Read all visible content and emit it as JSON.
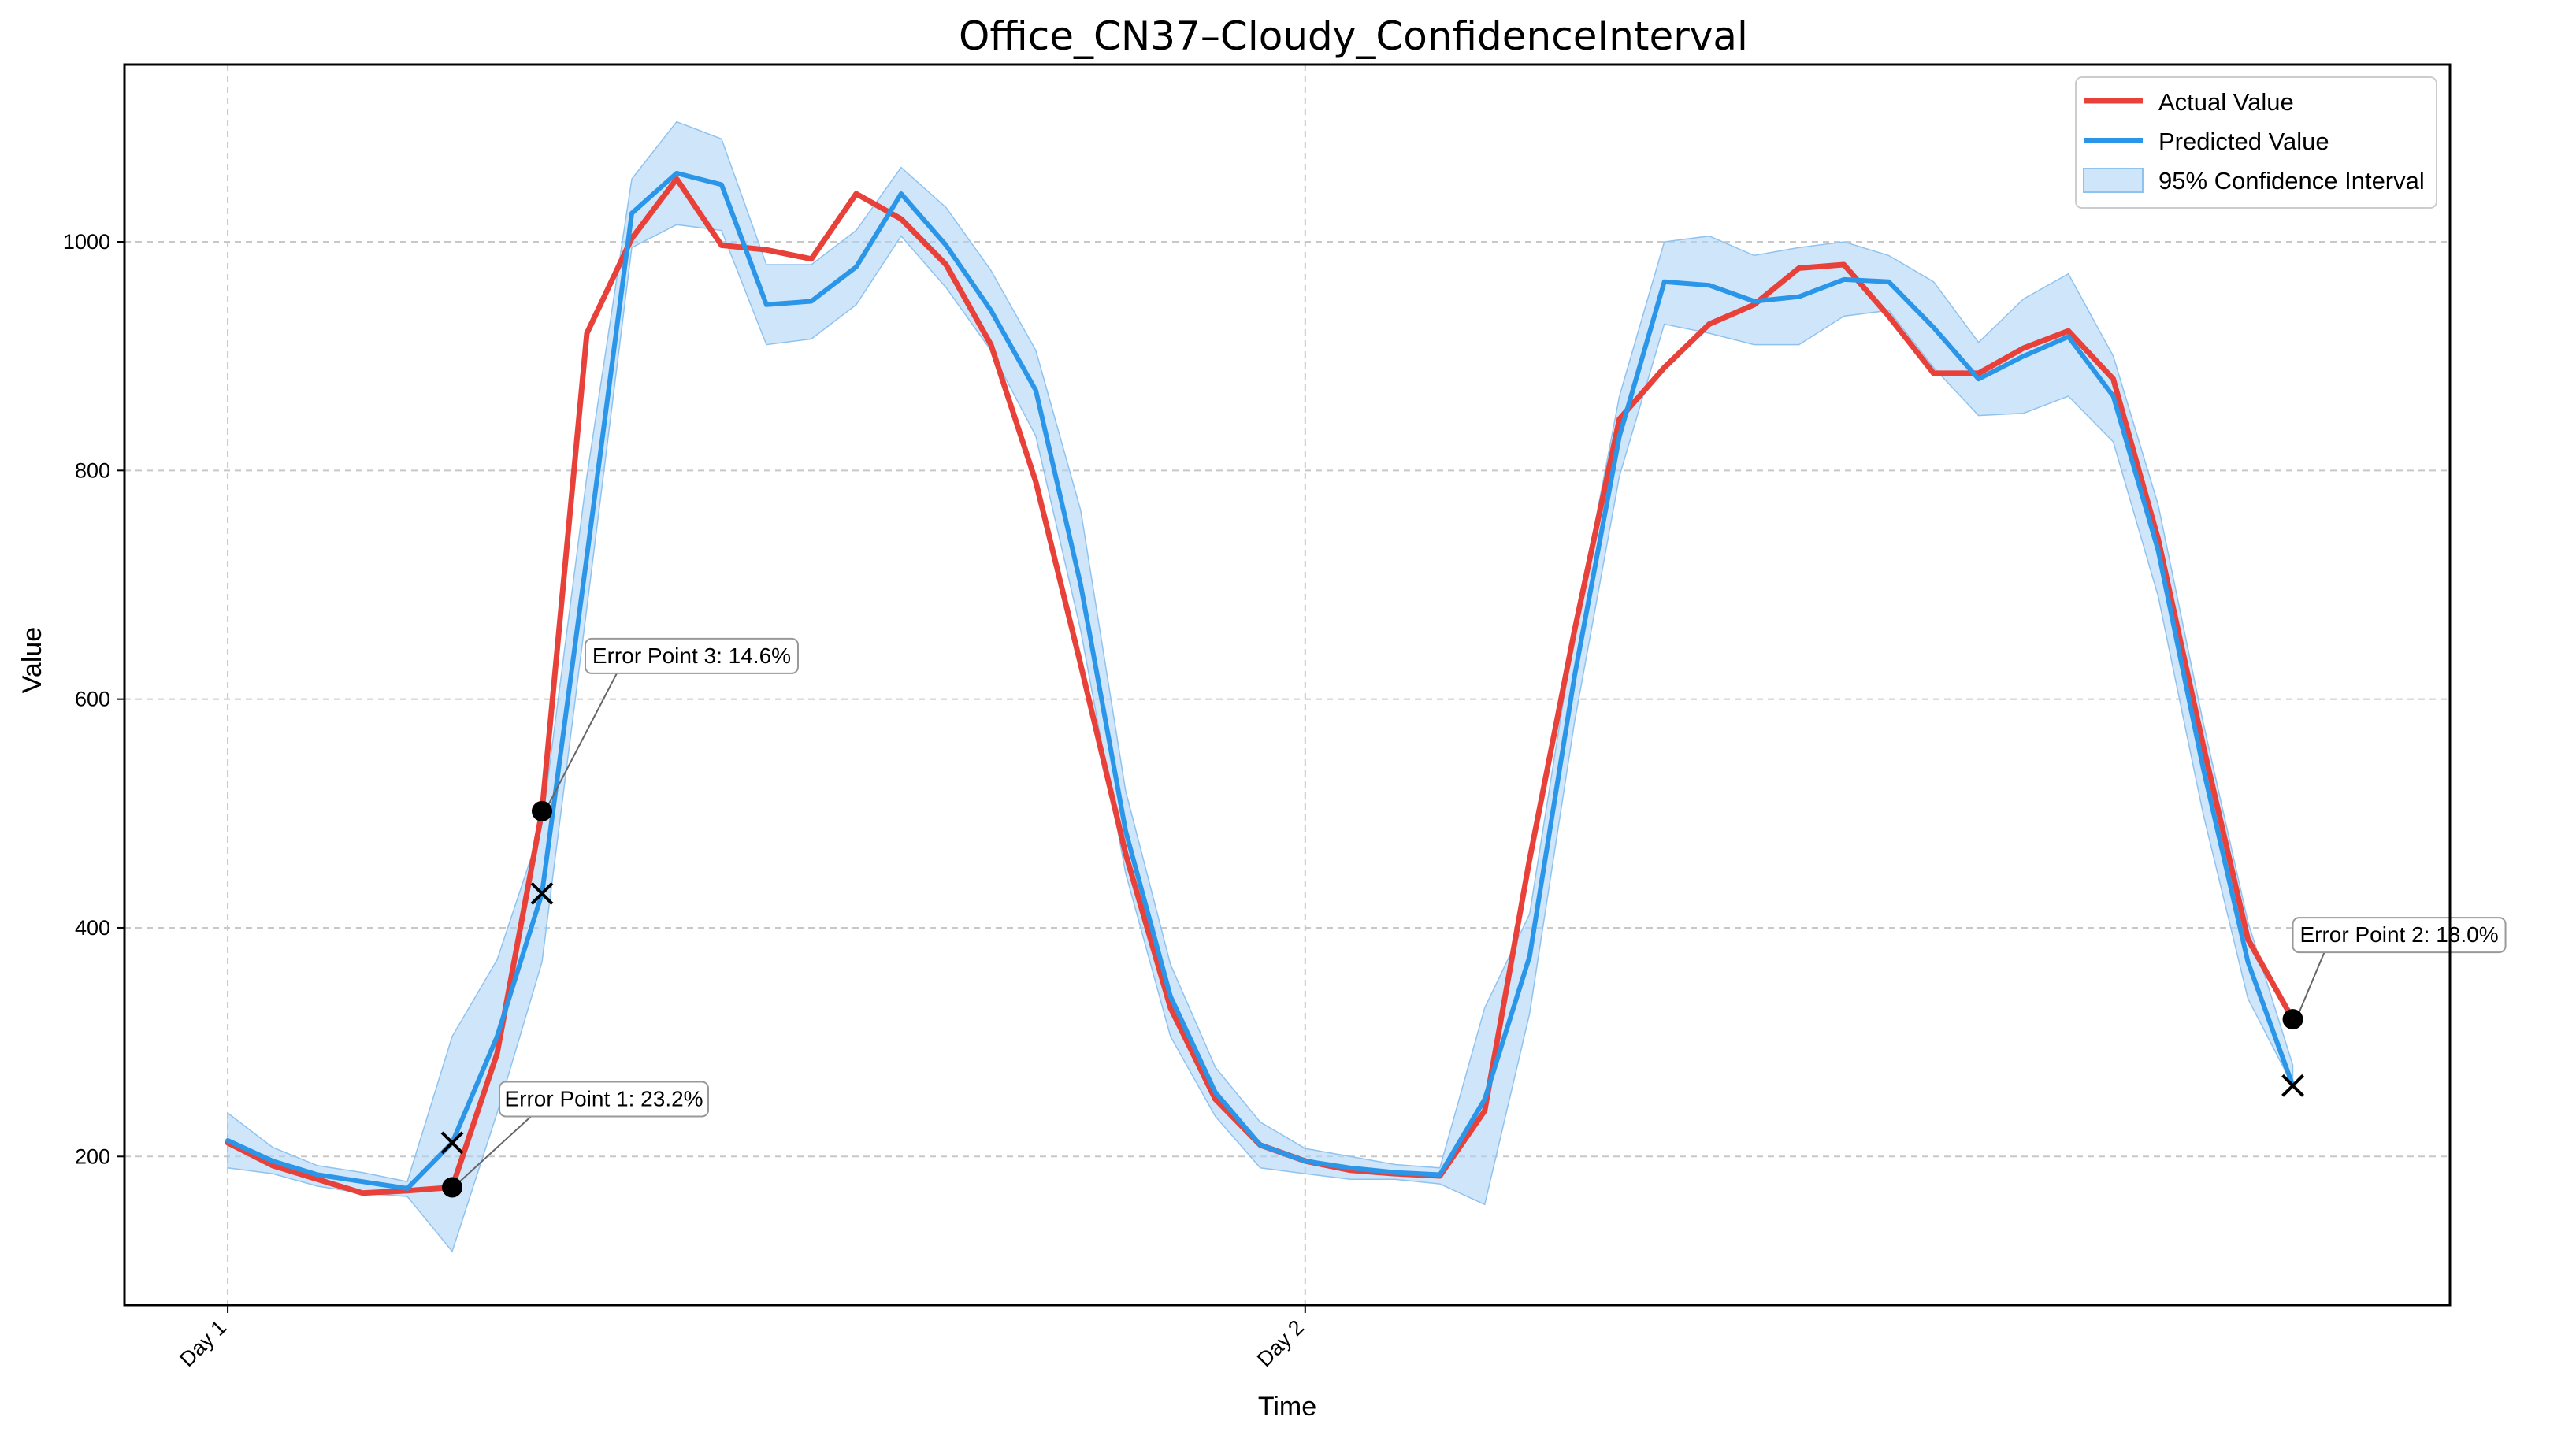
{
  "chart_data": {
    "type": "line",
    "title": "Office_CN37–Cloudy_ConfidenceInterval",
    "xlabel": "Time",
    "ylabel": "Value",
    "x_tick_labels": [
      "Day 1",
      "Day 2"
    ],
    "x_tick_index": [
      0,
      24
    ],
    "x_range": [
      -2.3,
      49.5
    ],
    "ylim": [
      70,
      1155
    ],
    "yticks": [
      200,
      400,
      600,
      800,
      1000
    ],
    "grid": true,
    "legend_position": "top-right",
    "series": [
      {
        "name": "Actual Value",
        "color": "#e8413a",
        "values": [
          212,
          192,
          180,
          168,
          170,
          173,
          290,
          502,
          920,
          1003,
          1055,
          997,
          993,
          985,
          1042,
          1020,
          980,
          910,
          790,
          630,
          465,
          330,
          250,
          210,
          196,
          188,
          185,
          183,
          240,
          460,
          660,
          845,
          890,
          928,
          945,
          977,
          980,
          935,
          885,
          885,
          907,
          922,
          880,
          740,
          560,
          390,
          320
        ]
      },
      {
        "name": "Predicted Value",
        "color": "#2b95e8",
        "values": [
          214,
          196,
          184,
          178,
          172,
          212,
          305,
          430,
          725,
          1025,
          1060,
          1050,
          945,
          948,
          978,
          1042,
          997,
          940,
          870,
          700,
          485,
          340,
          256,
          210,
          196,
          190,
          186,
          184,
          250,
          375,
          620,
          830,
          965,
          962,
          948,
          952,
          967,
          965,
          925,
          880,
          900,
          917,
          865,
          730,
          540,
          370,
          262
        ]
      }
    ],
    "confidence_interval": {
      "name": "95% Confidence Interval",
      "color": "#aed4f6",
      "lower": [
        190,
        185,
        174,
        168,
        165,
        117,
        238,
        370,
        680,
        995,
        1015,
        1010,
        910,
        915,
        945,
        1005,
        960,
        905,
        830,
        660,
        448,
        305,
        235,
        190,
        185,
        180,
        180,
        176,
        158,
        325,
        580,
        795,
        928,
        920,
        910,
        910,
        935,
        940,
        890,
        848,
        850,
        865,
        825,
        690,
        500,
        338,
        262
      ]
    },
    "confidence_interval_upper": [
      238,
      208,
      192,
      186,
      178,
      305,
      372,
      490,
      795,
      1055,
      1105,
      1090,
      980,
      980,
      1010,
      1065,
      1030,
      975,
      905,
      765,
      520,
      368,
      278,
      230,
      207,
      200,
      193,
      190,
      330,
      412,
      660,
      865,
      1000,
      1005,
      988,
      995,
      1000,
      988,
      965,
      912,
      950,
      972,
      900,
      770,
      580,
      405,
      280
    ],
    "error_points": [
      {
        "label": "Error Point 1: 23.2%",
        "index": 5,
        "actual": 173,
        "predicted": 212
      },
      {
        "label": "Error Point 3: 14.6%",
        "index": 7,
        "actual": 502,
        "predicted": 430
      },
      {
        "label": "Error Point 2: 18.0%",
        "index": 46,
        "actual": 320,
        "predicted": 262
      }
    ]
  }
}
